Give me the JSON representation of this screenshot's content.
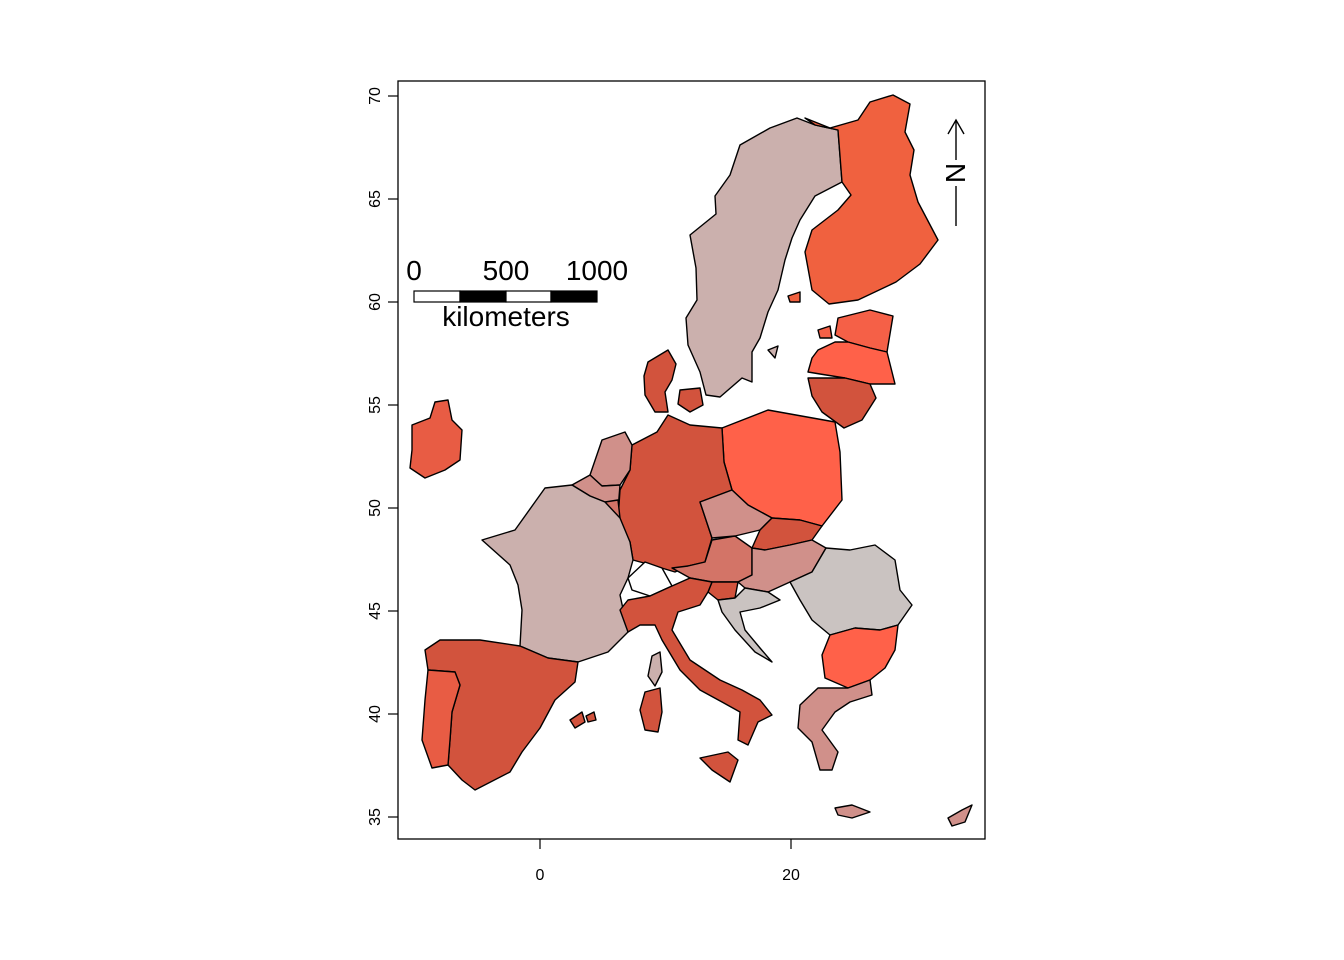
{
  "map": {
    "axes": {
      "x_ticks": [
        {
          "value": 0,
          "label": "0"
        },
        {
          "value": 20,
          "label": "20"
        }
      ],
      "y_ticks": [
        {
          "value": 35,
          "label": "35"
        },
        {
          "value": 40,
          "label": "40"
        },
        {
          "value": 45,
          "label": "45"
        },
        {
          "value": 50,
          "label": "50"
        },
        {
          "value": 55,
          "label": "55"
        },
        {
          "value": 60,
          "label": "60"
        },
        {
          "value": 65,
          "label": "65"
        },
        {
          "value": 70,
          "label": "70"
        }
      ],
      "x_range_lon": [
        -11.3,
        35.5
      ],
      "y_range_lat": [
        34.0,
        70.8
      ]
    },
    "scale_bar": {
      "labels": [
        "0",
        "500",
        "1000"
      ],
      "unit": "kilometers"
    },
    "north_arrow": {
      "label": "N"
    },
    "fill_colors": {
      "light_grey": "#cac3c1",
      "grey_pink": "#cbb0ad",
      "dusty_rose": "#d0908a",
      "salmon": "#d37467",
      "red_brown": "#d2533d",
      "bright_orange": "#f56047",
      "orange_red": "#ff6149",
      "orange": "#f0613f"
    }
  }
}
